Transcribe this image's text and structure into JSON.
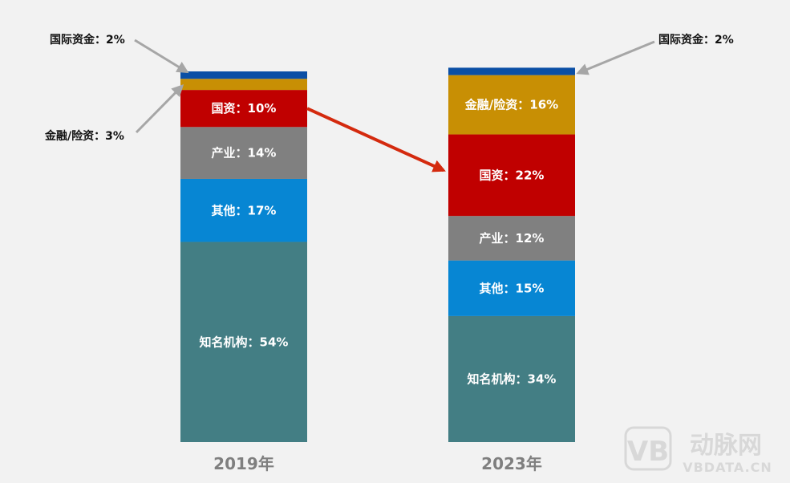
{
  "chart_data": {
    "type": "bar",
    "stacked": true,
    "normalized_percent": true,
    "categories": [
      "2019年",
      "2023年"
    ],
    "series": [
      {
        "key": "known",
        "name": "知名机构",
        "color": "#437e84",
        "values": [
          54,
          34
        ],
        "labels": [
          "知名机构：54%",
          "知名机构：34%"
        ]
      },
      {
        "key": "other",
        "name": "其他",
        "color": "#0786d3",
        "values": [
          17,
          15
        ],
        "labels": [
          "其他：17%",
          "其他：15%"
        ]
      },
      {
        "key": "industry",
        "name": "产业",
        "color": "#808080",
        "values": [
          14,
          12
        ],
        "labels": [
          "产业：14%",
          "产业：12%"
        ]
      },
      {
        "key": "state",
        "name": "国资",
        "color": "#c00000",
        "values": [
          10,
          22
        ],
        "labels": [
          "国资：10%",
          "国资：22%"
        ]
      },
      {
        "key": "finance",
        "name": "金融/险资",
        "color": "#c88f04",
        "values": [
          3,
          16
        ],
        "labels": [
          "金融/险资：3%",
          "金融/险资：16%"
        ]
      },
      {
        "key": "intl",
        "name": "国际资金",
        "color": "#0b4fa5",
        "values": [
          2,
          2
        ],
        "labels": [
          "国际资金：2%",
          "国际资金：2%"
        ]
      }
    ],
    "annotation": {
      "type": "arrow",
      "from_category": "2019年",
      "to_category": "2023年",
      "series": "国资",
      "color": "#d42a0e"
    },
    "ylim": [
      0,
      100
    ],
    "grid": false,
    "legend": "none"
  },
  "watermark": {
    "logo_text": "VB",
    "brand_cn": "动脉网",
    "brand_en": "VBDATA.CN"
  }
}
